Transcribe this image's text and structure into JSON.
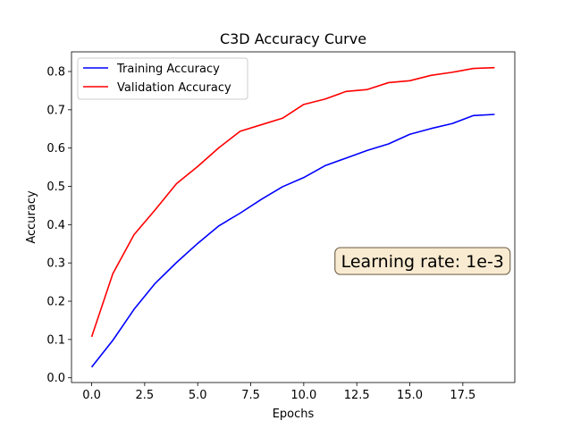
{
  "chart_data": {
    "type": "line",
    "title": "C3D Accuracy Curve",
    "xlabel": "Epochs",
    "ylabel": "Accuracy",
    "xlim": [
      -0.95,
      19.95
    ],
    "ylim": [
      -0.0124,
      0.8514
    ],
    "x_ticks": [
      0.0,
      2.5,
      5.0,
      7.5,
      10.0,
      12.5,
      15.0,
      17.5
    ],
    "x_tick_labels": [
      "0.0",
      "2.5",
      "5.0",
      "7.5",
      "10.0",
      "12.5",
      "15.0",
      "17.5"
    ],
    "y_ticks": [
      0.0,
      0.1,
      0.2,
      0.3,
      0.4,
      0.5,
      0.6,
      0.7,
      0.8
    ],
    "y_tick_labels": [
      "0.0",
      "0.1",
      "0.2",
      "0.3",
      "0.4",
      "0.5",
      "0.6",
      "0.7",
      "0.8"
    ],
    "grid": false,
    "legend_position": "upper-left",
    "x": [
      0,
      1,
      2,
      3,
      4,
      5,
      6,
      7,
      8,
      9,
      10,
      11,
      12,
      13,
      14,
      15,
      16,
      17,
      18,
      19
    ],
    "series": [
      {
        "name": "Training Accuracy",
        "color": "#0000ff",
        "values": [
          0.028,
          0.098,
          0.179,
          0.247,
          0.301,
          0.351,
          0.397,
          0.43,
          0.466,
          0.499,
          0.523,
          0.554,
          0.574,
          0.594,
          0.611,
          0.636,
          0.651,
          0.664,
          0.685,
          0.688
        ]
      },
      {
        "name": "Validation Accuracy",
        "color": "#ff0000",
        "values": [
          0.107,
          0.272,
          0.374,
          0.439,
          0.507,
          0.552,
          0.601,
          0.644,
          0.661,
          0.678,
          0.714,
          0.728,
          0.748,
          0.753,
          0.771,
          0.776,
          0.79,
          0.798,
          0.808,
          0.81
        ]
      }
    ],
    "annotation": {
      "text": "Learning rate: 1e-3",
      "anchor": [
        15.6,
        0.305
      ],
      "box_fill": "#f5deb3",
      "box_edge": "#7a6a55"
    }
  }
}
